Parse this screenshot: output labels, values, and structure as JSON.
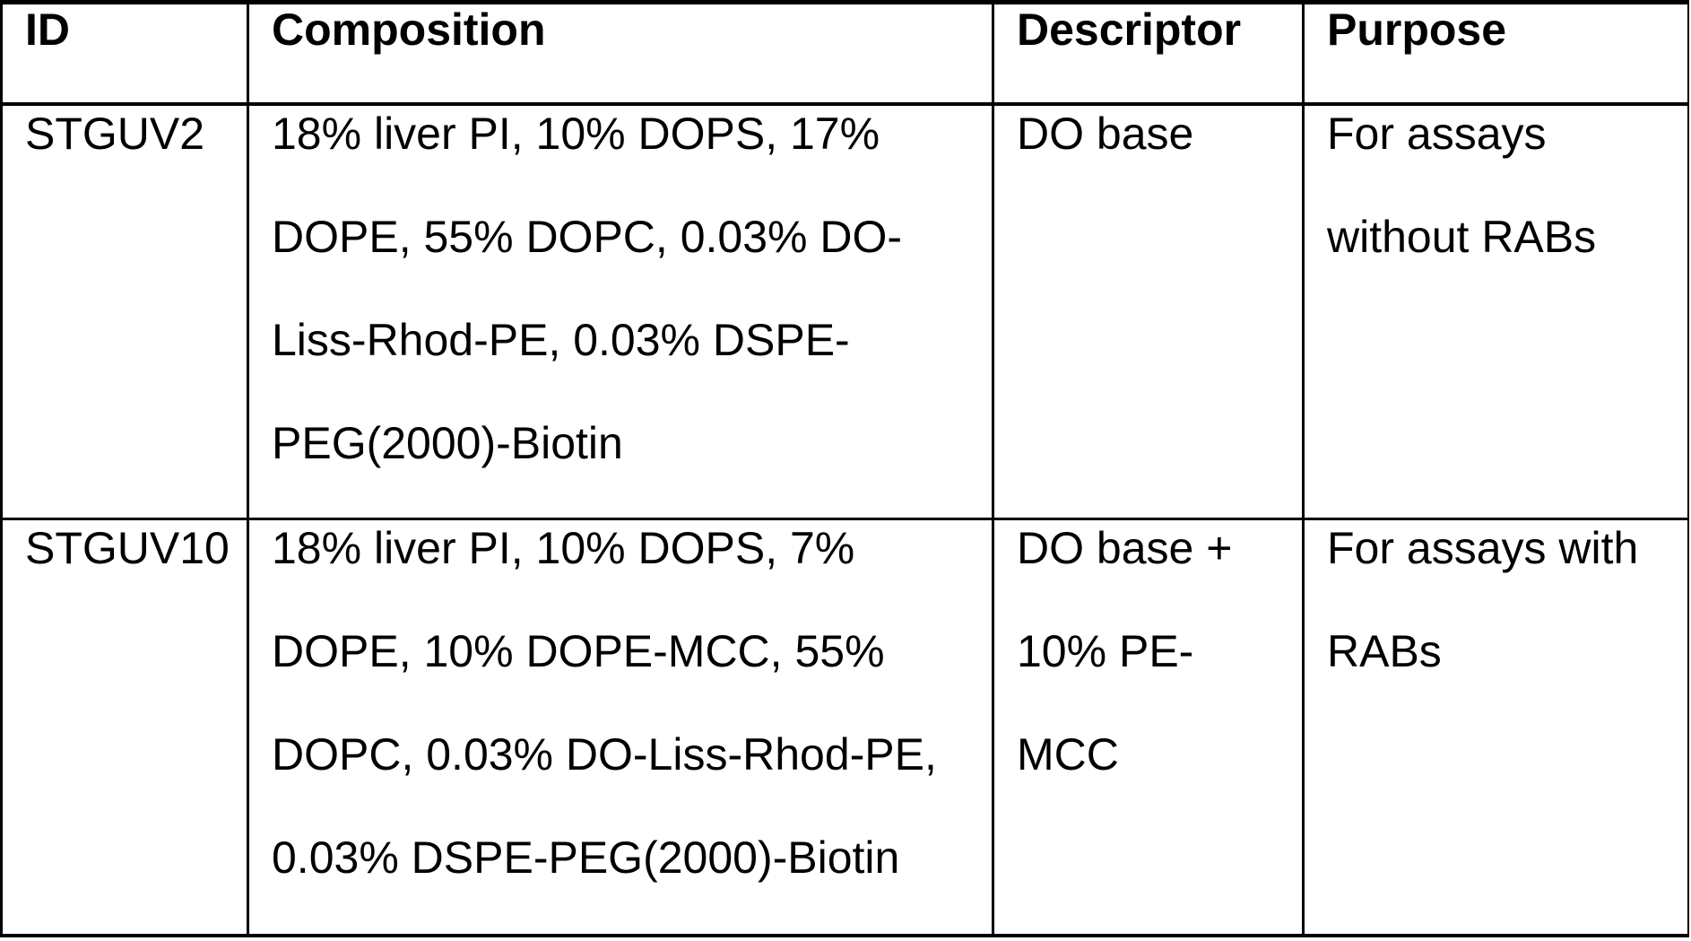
{
  "table": {
    "headers": {
      "id": "ID",
      "composition": "Composition",
      "descriptor": "Descriptor",
      "purpose": "Purpose"
    },
    "rows": [
      {
        "id": "STGUV2",
        "composition": "18% liver PI, 10% DOPS, 17%\nDOPE, 55% DOPC, 0.03% DO-\nLiss-Rhod-PE, 0.03% DSPE-\nPEG(2000)-Biotin",
        "descriptor": "DO base",
        "purpose": "For assays\nwithout RABs"
      },
      {
        "id": "STGUV10",
        "composition": "18% liver PI, 10% DOPS, 7%\nDOPE, 10% DOPE-MCC, 55%\nDOPC, 0.03% DO-Liss-Rhod-PE,\n0.03% DSPE-PEG(2000)-Biotin",
        "descriptor": "DO base +\n10% PE-\nMCC",
        "purpose": "For assays with\nRABs"
      }
    ]
  },
  "colors": {
    "background": "#ffffff",
    "text": "#000000",
    "border": "#000000"
  }
}
